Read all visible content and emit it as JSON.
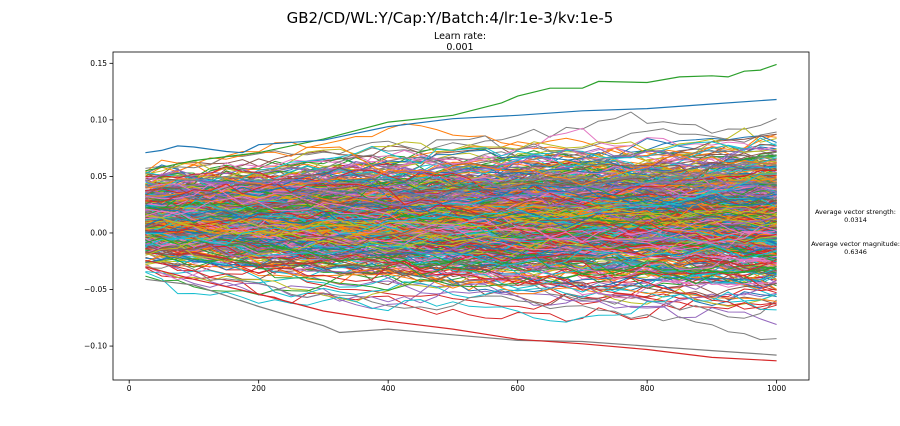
{
  "figure": {
    "suptitle": "GB2/CD/WL:Y/Cap:Y/Batch:4/lr:1e-3/kv:1e-5",
    "subtitle_label": "Learn rate:",
    "subtitle_value": "0.001",
    "stats": {
      "strength_label": "Average vector strength:",
      "strength_value": "0.0314",
      "magnitude_label": "Average vector magnitude:",
      "magnitude_value": "0.6346"
    }
  },
  "chart_data": {
    "type": "line",
    "title": "",
    "xlabel": "",
    "ylabel": "",
    "xlim": [
      -25,
      1050
    ],
    "ylim": [
      -0.13,
      0.16
    ],
    "xticks": [
      0,
      200,
      400,
      600,
      800,
      1000
    ],
    "yticks": [
      -0.1,
      -0.05,
      0.0,
      0.05,
      0.1,
      0.15
    ],
    "x_range": [
      25,
      1000
    ],
    "x_step": 25,
    "series_count": 640,
    "start_spread": [
      -0.045,
      0.072
    ],
    "end_spread": [
      -0.113,
      0.148
    ],
    "y_max": 0.148,
    "y_min": -0.113,
    "colors": [
      "#1f77b4",
      "#ff7f0e",
      "#2ca02c",
      "#d62728",
      "#9467bd",
      "#8c564b",
      "#e377c2",
      "#7f7f7f",
      "#bcbd22",
      "#17becf"
    ],
    "highlight_series": [
      {
        "color": "#2ca02c",
        "x": [
          25,
          100,
          200,
          300,
          400,
          500,
          575,
          600,
          650,
          700,
          725,
          800,
          850,
          900,
          925,
          950,
          975,
          1000
        ],
        "y": [
          0.055,
          0.064,
          0.071,
          0.083,
          0.098,
          0.104,
          0.115,
          0.121,
          0.128,
          0.128,
          0.134,
          0.133,
          0.138,
          0.139,
          0.138,
          0.143,
          0.144,
          0.149
        ]
      },
      {
        "color": "#1f77b4",
        "x": [
          25,
          50,
          75,
          100,
          150,
          175,
          200,
          300,
          400,
          500,
          600,
          700,
          800,
          900,
          1000
        ],
        "y": [
          0.071,
          0.073,
          0.077,
          0.076,
          0.072,
          0.071,
          0.078,
          0.082,
          0.094,
          0.101,
          0.104,
          0.108,
          0.11,
          0.114,
          0.118
        ]
      },
      {
        "color": "#7f7f7f",
        "x": [
          25,
          100,
          200,
          300,
          325,
          350,
          400,
          500,
          600,
          700,
          800,
          900,
          1000
        ],
        "y": [
          -0.041,
          -0.046,
          -0.065,
          -0.082,
          -0.088,
          -0.087,
          -0.085,
          -0.09,
          -0.095,
          -0.096,
          -0.1,
          -0.104,
          -0.108
        ]
      },
      {
        "color": "#d62728",
        "x": [
          25,
          100,
          200,
          300,
          400,
          500,
          600,
          700,
          800,
          900,
          1000
        ],
        "y": [
          -0.03,
          -0.041,
          -0.054,
          -0.069,
          -0.078,
          -0.085,
          -0.094,
          -0.098,
          -0.103,
          -0.11,
          -0.113
        ]
      }
    ]
  }
}
